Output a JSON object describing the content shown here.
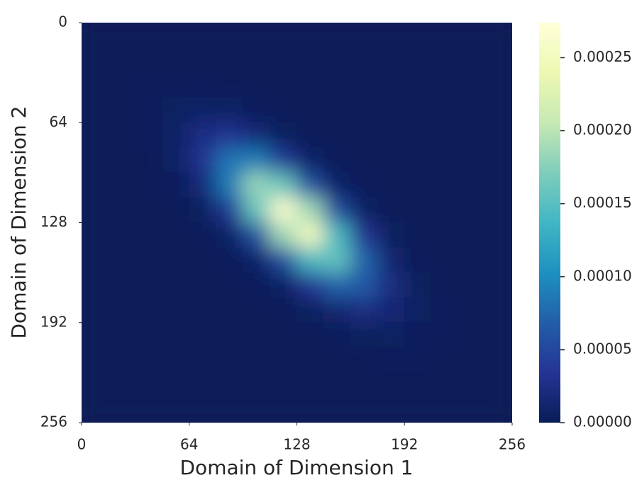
{
  "chart_data": {
    "type": "heatmap",
    "xlabel": "Domain of Dimension 1",
    "ylabel": "Domain of Dimension 2",
    "xlim": [
      0,
      256
    ],
    "xticks": [
      0,
      64,
      128,
      192,
      256
    ],
    "ylim": [
      0,
      256
    ],
    "yticks": [
      0,
      64,
      128,
      192,
      256
    ],
    "zlim": [
      0,
      0.000274
    ],
    "zticks": [
      {
        "value": 0,
        "label": "0.00000"
      },
      5e-05,
      {
        "value": 0.0001,
        "label": "0.00010"
      },
      0.00015,
      {
        "value": 0.0002,
        "label": "0.00020"
      },
      0.00025
    ],
    "colormap": [
      "#081d58",
      "#253494",
      "#225ea8",
      "#1d91c0",
      "#41b6c4",
      "#7fcdbb",
      "#c7e9b4",
      "#edf8b1",
      "#ffffd9"
    ],
    "z": [
      [
        0,
        0,
        0,
        0,
        0,
        0,
        0,
        0,
        0,
        0,
        0,
        0,
        0,
        0,
        0,
        0
      ],
      [
        0,
        0,
        0,
        0,
        0,
        0,
        0,
        0,
        0,
        0,
        0,
        0,
        0,
        0,
        0,
        0
      ],
      [
        0,
        0,
        1e-06,
        1e-06,
        1e-06,
        0,
        0,
        0,
        0,
        0,
        0,
        0,
        0,
        0,
        0,
        0
      ],
      [
        0,
        0,
        1e-06,
        5e-06,
        8e-06,
        6e-06,
        2e-06,
        0,
        0,
        0,
        0,
        0,
        0,
        0,
        0,
        0
      ],
      [
        0,
        0,
        1e-06,
        8e-06,
        2.5e-05,
        3.3e-05,
        1.8e-05,
        4e-06,
        0,
        0,
        0,
        0,
        0,
        0,
        0,
        0
      ],
      [
        0,
        0,
        0,
        6e-06,
        3.3e-05,
        8.4e-05,
        9e-05,
        4e-05,
        8e-06,
        1e-06,
        0,
        0,
        0,
        0,
        0,
        0
      ],
      [
        0,
        0,
        0,
        2e-06,
        1.8e-05,
        9e-05,
        0.000183,
        0.000159,
        5.8e-05,
        9e-06,
        1e-06,
        0,
        0,
        0,
        0,
        0
      ],
      [
        0,
        0,
        0,
        0,
        4e-06,
        4e-05,
        0.000159,
        0.000264,
        0.000186,
        5.5e-05,
        7e-06,
        0,
        0,
        0,
        0,
        0
      ],
      [
        0,
        0,
        0,
        0,
        0,
        8e-06,
        5.8e-05,
        0.000186,
        0.000251,
        0.000143,
        3.5e-05,
        4e-06,
        0,
        0,
        0,
        0
      ],
      [
        0,
        0,
        0,
        0,
        0,
        1e-06,
        9e-06,
        5.5e-05,
        0.000143,
        0.000157,
        7.3e-05,
        1.4e-05,
        1e-06,
        0,
        0,
        0
      ],
      [
        0,
        0,
        0,
        0,
        0,
        0,
        1e-06,
        7e-06,
        3.5e-05,
        7.3e-05,
        6.5e-05,
        2.4e-05,
        4e-06,
        0,
        0,
        0
      ],
      [
        0,
        0,
        0,
        0,
        0,
        0,
        0,
        0,
        4e-06,
        1.4e-05,
        2.4e-05,
        1.7e-05,
        5e-06,
        1e-06,
        0,
        0
      ],
      [
        0,
        0,
        0,
        0,
        0,
        0,
        0,
        0,
        0,
        1e-06,
        4e-06,
        5e-06,
        3e-06,
        1e-06,
        0,
        0
      ],
      [
        0,
        0,
        0,
        0,
        0,
        0,
        0,
        0,
        0,
        0,
        0,
        1e-06,
        1e-06,
        0,
        0,
        0
      ],
      [
        0,
        0,
        0,
        0,
        0,
        0,
        0,
        0,
        0,
        0,
        0,
        0,
        0,
        0,
        0,
        0
      ],
      [
        0,
        0,
        0,
        0,
        0,
        0,
        0,
        0,
        0,
        0,
        0,
        0,
        0,
        0,
        0,
        0
      ]
    ]
  }
}
